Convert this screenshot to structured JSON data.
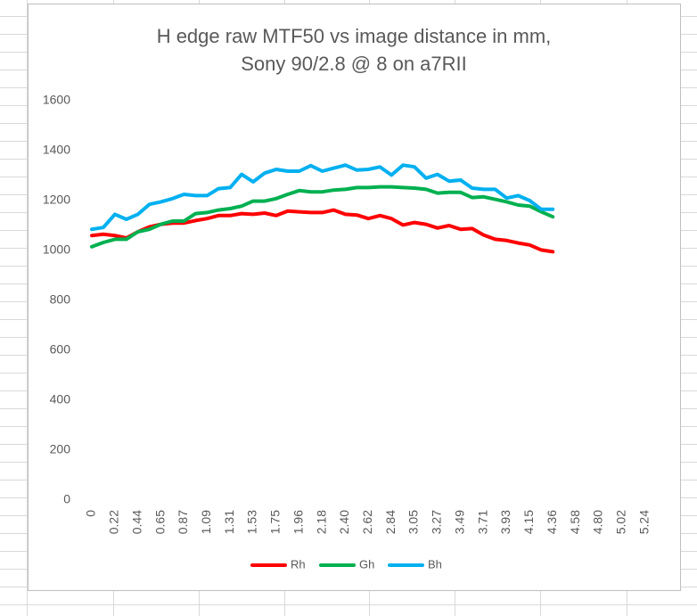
{
  "chart_data": {
    "type": "line",
    "title": [
      "H edge raw MTF50 vs image distance in mm,",
      "Sony 90/2.8 @ 8 on a7RII"
    ],
    "categories": [
      "0",
      null,
      "0.22",
      null,
      "0.44",
      null,
      "0.65",
      null,
      "0.87",
      null,
      "1.09",
      null,
      "1.31",
      null,
      "1.53",
      null,
      "1.75",
      null,
      "1.96",
      null,
      "2.18",
      null,
      "2.40",
      null,
      "2.62",
      null,
      "2.84",
      null,
      "3.05",
      null,
      "3.27",
      null,
      "3.49",
      null,
      "3.71",
      null,
      "3.93",
      null,
      "4.15",
      null,
      "4.36",
      null,
      "4.58",
      null,
      "4.80",
      null,
      "5.02",
      null,
      "5.24"
    ],
    "series": [
      {
        "name": "Rh",
        "color": "#ff0000",
        "values": [
          1060,
          1065,
          1060,
          1050,
          1075,
          1095,
          1105,
          1110,
          1110,
          1120,
          1128,
          1140,
          1140,
          1148,
          1145,
          1150,
          1140,
          1158,
          1155,
          1152,
          1152,
          1162,
          1145,
          1142,
          1128,
          1140,
          1128,
          1102,
          1112,
          1105,
          1090,
          1100,
          1085,
          1088,
          1062,
          1045,
          1040,
          1030,
          1022,
          1002,
          995,
          null,
          null,
          null,
          null,
          null,
          null,
          null,
          null
        ]
      },
      {
        "name": "Gh",
        "color": "#00b050",
        "values": [
          1015,
          1032,
          1045,
          1045,
          1075,
          1085,
          1105,
          1118,
          1118,
          1148,
          1152,
          1162,
          1168,
          1178,
          1198,
          1198,
          1208,
          1225,
          1240,
          1235,
          1235,
          1242,
          1245,
          1252,
          1252,
          1255,
          1255,
          1252,
          1250,
          1245,
          1230,
          1233,
          1233,
          1212,
          1215,
          1205,
          1195,
          1182,
          1178,
          1155,
          1135,
          null,
          null,
          null,
          null,
          null,
          null,
          null,
          null
        ]
      },
      {
        "name": "Bh",
        "color": "#00b0f0",
        "values": [
          1085,
          1092,
          1145,
          1125,
          1145,
          1185,
          1195,
          1208,
          1225,
          1220,
          1220,
          1248,
          1252,
          1305,
          1275,
          1310,
          1325,
          1318,
          1318,
          1340,
          1318,
          1330,
          1342,
          1322,
          1325,
          1335,
          1302,
          1342,
          1335,
          1290,
          1305,
          1278,
          1282,
          1250,
          1245,
          1245,
          1210,
          1220,
          1200,
          1165,
          1165,
          null,
          null,
          null,
          null,
          null,
          null,
          null,
          null
        ]
      }
    ],
    "ylim": [
      0,
      1600
    ],
    "yticks": [
      0,
      200,
      400,
      600,
      800,
      1000,
      1200,
      1400,
      1600
    ],
    "grid": false,
    "legend": "bottom"
  }
}
